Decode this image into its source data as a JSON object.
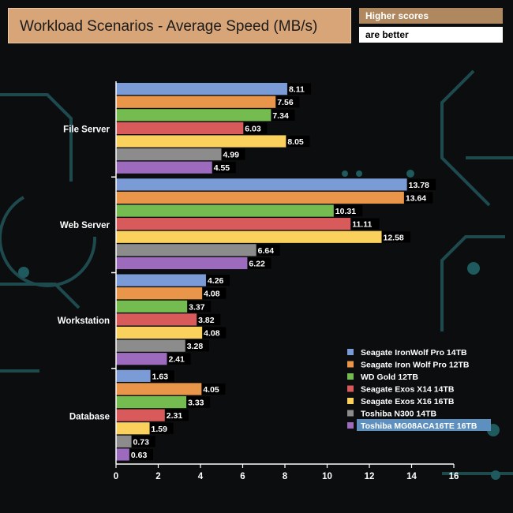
{
  "title": "Workload Scenarios - Average Speed (MB/s)",
  "note": {
    "line1": "Higher scores",
    "line2": "are better"
  },
  "chart_data": {
    "type": "bar",
    "orientation": "horizontal",
    "title": "Workload Scenarios - Average Speed (MB/s)",
    "categories": [
      "File Server",
      "Web Server",
      "Workstation",
      "Database"
    ],
    "xlim": [
      0,
      16
    ],
    "xticks": [
      0,
      2,
      4,
      6,
      8,
      10,
      12,
      14,
      16
    ],
    "legend_position": "right",
    "highlighted_series": "Toshiba MG08ACA16TE 16TB",
    "series": [
      {
        "name": "Seagate IronWolf Pro 14TB",
        "color": "#7b9bd6",
        "values": [
          8.11,
          13.78,
          4.26,
          1.63
        ]
      },
      {
        "name": "Seagate Iron Wolf Pro 12TB",
        "color": "#e9964b",
        "values": [
          7.56,
          13.64,
          4.08,
          4.05
        ]
      },
      {
        "name": "WD Gold 12TB",
        "color": "#75bc50",
        "values": [
          7.34,
          10.31,
          3.37,
          3.33
        ]
      },
      {
        "name": "Seagate Exos X14 14TB",
        "color": "#d95a5a",
        "values": [
          6.03,
          11.11,
          3.82,
          2.31
        ]
      },
      {
        "name": "Seagate Exos X16 16TB",
        "color": "#fbd15e",
        "values": [
          8.05,
          12.58,
          4.08,
          1.59
        ]
      },
      {
        "name": "Toshiba N300 14TB",
        "color": "#8c8c8c",
        "values": [
          4.99,
          6.64,
          3.28,
          0.73
        ]
      },
      {
        "name": "Toshiba MG08ACA16TE 16TB",
        "color": "#9c6bbd",
        "values": [
          4.55,
          6.22,
          2.41,
          0.63
        ]
      }
    ]
  }
}
